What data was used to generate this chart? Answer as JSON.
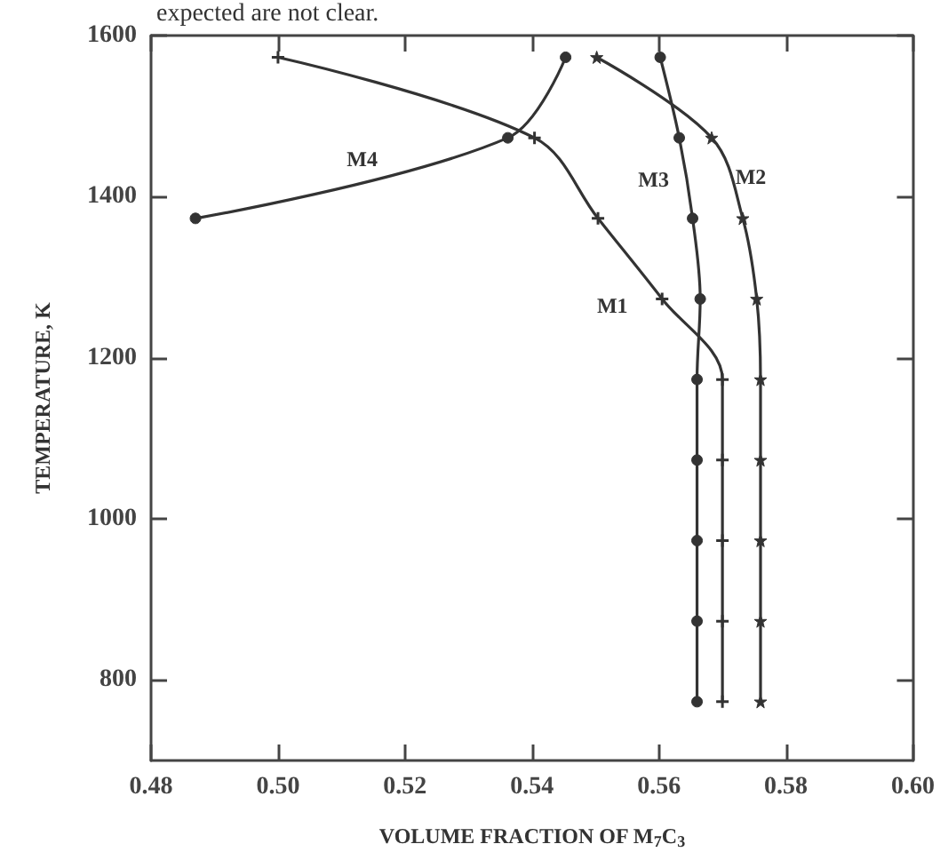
{
  "chart_data": {
    "type": "line",
    "xlabel": "VOLUME FRACTION OF M$_{7}$C$_{3}$",
    "ylabel": "TEMPERATURE, K",
    "annotations": [
      "expected are not clear."
    ],
    "xlim": [
      0.48,
      0.6
    ],
    "xticks": [
      0.48,
      {
        "value": 0.5,
        "label": "0.50"
      },
      0.52,
      0.54,
      0.56,
      0.58,
      {
        "value": 0.6,
        "label": "0.60"
      }
    ],
    "ylim": [
      700,
      1600
    ],
    "yticks": [
      800,
      1000,
      1200,
      1400,
      1600
    ],
    "grid": false,
    "legend": false,
    "line_style": "solid",
    "series": [
      {
        "name": "M1",
        "color": "#333333",
        "marker": "cross",
        "x": [
          0.57,
          0.57,
          0.57,
          0.57,
          0.57,
          0.5605,
          0.5504,
          0.5404,
          0.5
        ],
        "values": [
          773,
          873,
          973,
          1073,
          1173,
          1273,
          1373,
          1473,
          1573
        ]
      },
      {
        "name": "M2",
        "color": "#333333",
        "marker": "star",
        "x": [
          0.576,
          0.576,
          0.576,
          0.576,
          0.576,
          0.5754,
          0.5732,
          0.5683,
          0.5502
        ],
        "values": [
          773,
          873,
          973,
          1073,
          1173,
          1273,
          1373,
          1473,
          1573
        ]
      },
      {
        "name": "M3",
        "color": "#333333",
        "marker": "circle",
        "x": [
          0.566,
          0.566,
          0.566,
          0.566,
          0.566,
          0.5665,
          0.5653,
          0.5632,
          0.5602
        ],
        "values": [
          773,
          873,
          973,
          1073,
          1173,
          1273,
          1373,
          1473,
          1573
        ]
      },
      {
        "name": "M4",
        "color": "#333333",
        "marker": "circle",
        "x": [
          0.487,
          0.5362,
          0.5453
        ],
        "values": [
          1373,
          1473,
          1573
        ]
      }
    ]
  }
}
